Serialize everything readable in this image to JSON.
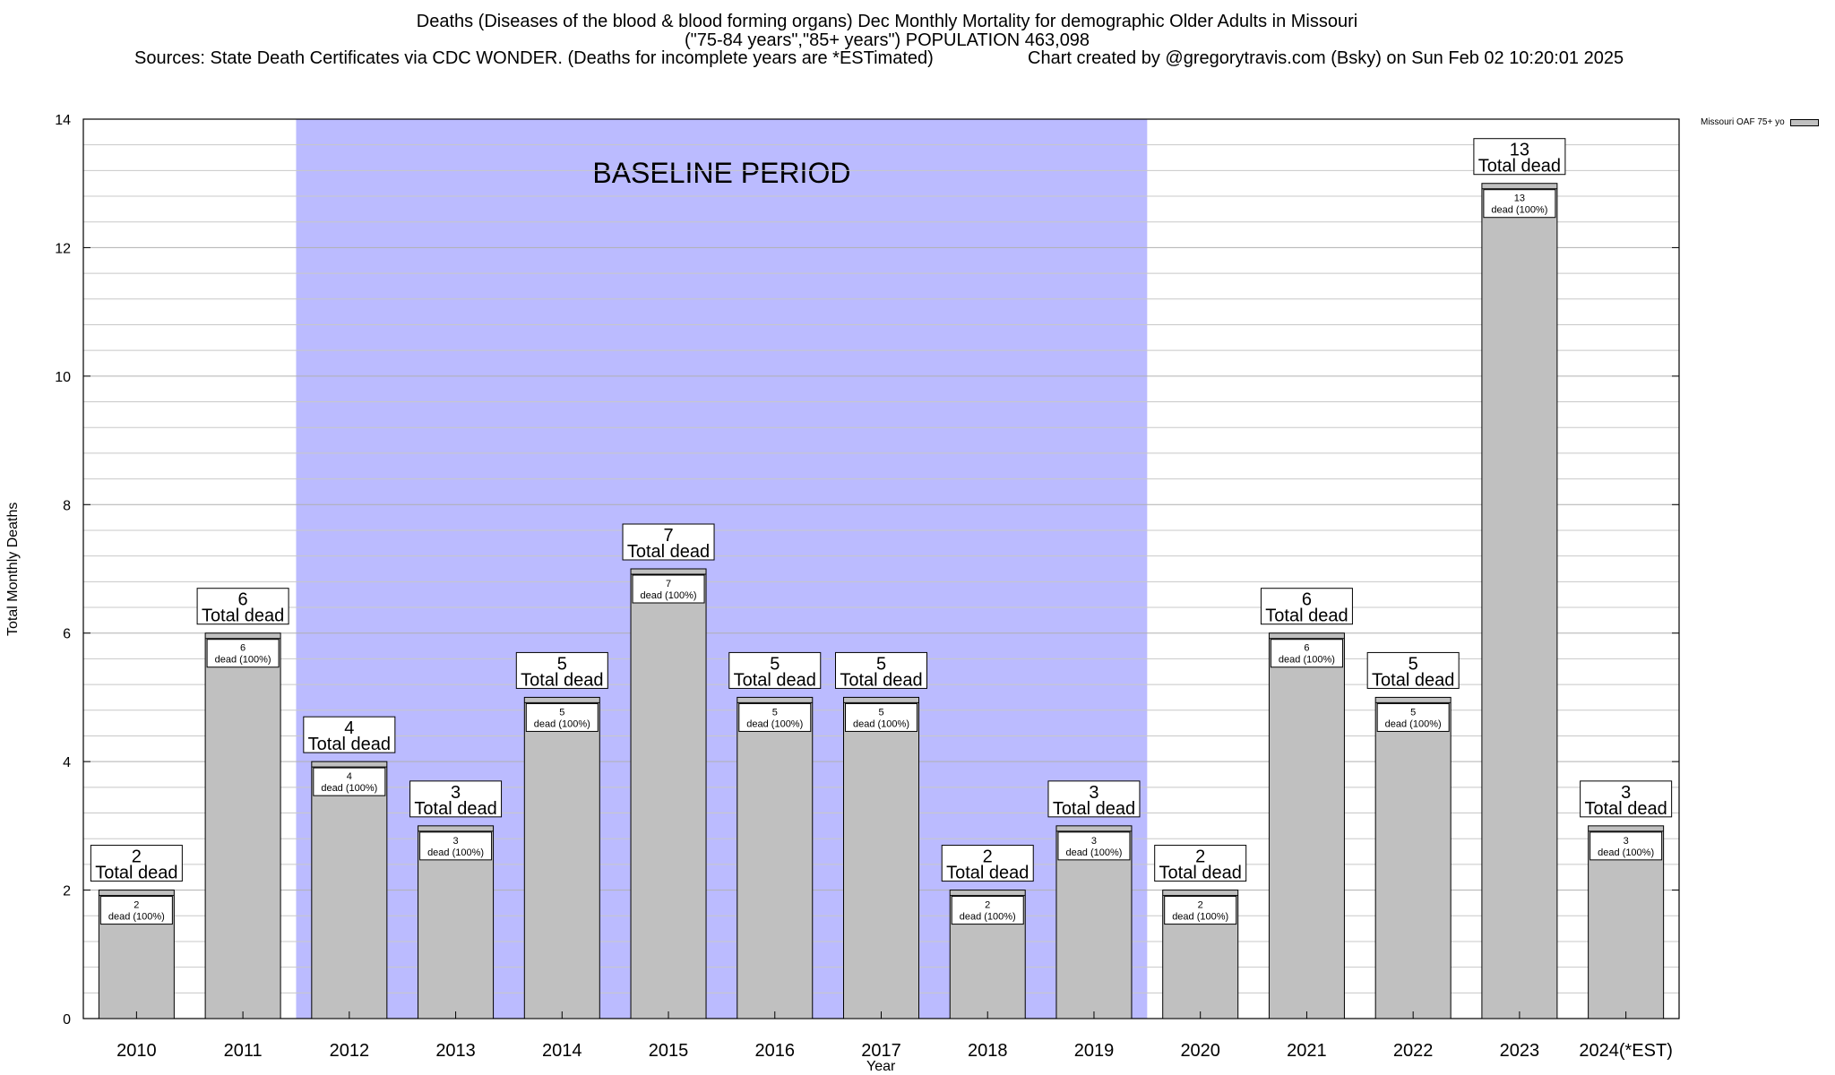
{
  "chart_data": {
    "type": "bar",
    "title_lines": [
      "Deaths (Diseases of the blood & blood forming organs) Dec Monthly Mortality for demographic Older Adults in Missouri",
      "(\"75-84 years\",\"85+ years\") POPULATION 463,098"
    ],
    "sources": "Sources: State Death Certificates via CDC WONDER. (Deaths for incomplete years are *ESTimated)",
    "credit": "Chart created by @gregorytravis.com (Bsky) on Sun Feb 02 10:20:01 2025",
    "xlabel": "Year",
    "ylabel": "Total Monthly Deaths",
    "ylim": [
      0,
      14
    ],
    "yticks": [
      "0",
      "2",
      "4",
      "6",
      "8",
      "10",
      "12",
      "14"
    ],
    "categories": [
      "2010",
      "2011",
      "2012",
      "2013",
      "2014",
      "2015",
      "2016",
      "2017",
      "2018",
      "2019",
      "2020",
      "2021",
      "2022",
      "2023",
      "2024(*EST)"
    ],
    "series": [
      {
        "name": "Missouri OAF 75+ yo",
        "color": "#c0c0c0",
        "values": [
          2,
          6,
          4,
          3,
          5,
          7,
          5,
          5,
          2,
          3,
          2,
          6,
          5,
          13,
          3
        ]
      }
    ],
    "bar_label_line": "Total dead",
    "bar_inner_label_line": "dead (100%)",
    "baseline_period": {
      "label": "BASELINE PERIOD",
      "from": "2012",
      "to": "2019",
      "color": "#bbbbff"
    },
    "grid": true,
    "legend_position": "top-right"
  }
}
